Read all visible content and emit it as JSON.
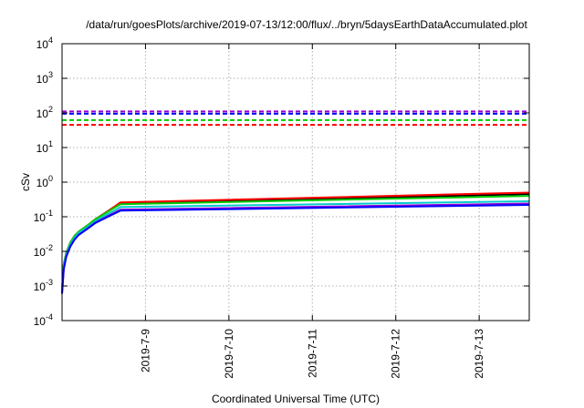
{
  "chart_data": {
    "type": "line",
    "title": "/data/run/goesPlots/archive/2019-07-13/12:00/flux/../bryn/5daysEarthDataAccumulated.plot",
    "xlabel": "Coordinated Universal Time (UTC)",
    "ylabel": "cSv",
    "yscale": "log",
    "ylim": [
      0.0001,
      10000
    ],
    "xlim": [
      0,
      5.6
    ],
    "grid": true,
    "y_ticks": [
      {
        "value": 0.0001,
        "base": "10",
        "exp": "-4"
      },
      {
        "value": 0.001,
        "base": "10",
        "exp": "-3"
      },
      {
        "value": 0.01,
        "base": "10",
        "exp": "-2"
      },
      {
        "value": 0.1,
        "base": "10",
        "exp": "-1"
      },
      {
        "value": 1,
        "base": "10",
        "exp": "0"
      },
      {
        "value": 10,
        "base": "10",
        "exp": "1"
      },
      {
        "value": 100,
        "base": "10",
        "exp": "2"
      },
      {
        "value": 1000,
        "base": "10",
        "exp": "3"
      },
      {
        "value": 10000,
        "base": "10",
        "exp": "4"
      }
    ],
    "x_ticks": [
      {
        "value": 1,
        "label": "2019-7-9"
      },
      {
        "value": 2,
        "label": "2019-7-10"
      },
      {
        "value": 3,
        "label": "2019-7-11"
      },
      {
        "value": 4,
        "label": "2019-7-12"
      },
      {
        "value": 5,
        "label": "2019-7-13"
      }
    ],
    "thresholds": [
      {
        "value": 110,
        "color": "#9400d3"
      },
      {
        "value": 95,
        "color": "#0000ff"
      },
      {
        "value": 62,
        "color": "#00cc00"
      },
      {
        "value": 45,
        "color": "#ff0000"
      }
    ],
    "series": [
      {
        "color": "#000000",
        "x": [
          0,
          0.02,
          0.05,
          0.1,
          0.15,
          0.2,
          0.3,
          0.4,
          0.55,
          0.7,
          5.6
        ],
        "y": [
          0.0008,
          0.004,
          0.009,
          0.018,
          0.028,
          0.037,
          0.055,
          0.085,
          0.145,
          0.25,
          0.45
        ]
      },
      {
        "color": "#ff0000",
        "x": [
          0,
          0.02,
          0.05,
          0.1,
          0.15,
          0.2,
          0.3,
          0.4,
          0.55,
          0.7,
          5.6
        ],
        "y": [
          0.0008,
          0.004,
          0.009,
          0.018,
          0.028,
          0.037,
          0.055,
          0.085,
          0.145,
          0.26,
          0.5
        ]
      },
      {
        "color": "#00cc00",
        "x": [
          0,
          0.02,
          0.05,
          0.1,
          0.15,
          0.2,
          0.3,
          0.4,
          0.55,
          0.7,
          5.6
        ],
        "y": [
          0.0008,
          0.004,
          0.009,
          0.018,
          0.028,
          0.037,
          0.055,
          0.085,
          0.14,
          0.23,
          0.4
        ]
      },
      {
        "color": "#00cccc",
        "x": [
          0,
          0.02,
          0.05,
          0.1,
          0.15,
          0.2,
          0.3,
          0.4,
          0.55,
          0.7,
          5.6
        ],
        "y": [
          0.0007,
          0.0035,
          0.008,
          0.016,
          0.025,
          0.034,
          0.05,
          0.075,
          0.12,
          0.19,
          0.28
        ]
      },
      {
        "color": "#9400d3",
        "x": [
          0,
          0.02,
          0.05,
          0.1,
          0.15,
          0.2,
          0.3,
          0.4,
          0.55,
          0.7,
          5.6
        ],
        "y": [
          0.0006,
          0.003,
          0.007,
          0.014,
          0.022,
          0.03,
          0.045,
          0.068,
          0.105,
          0.16,
          0.24
        ]
      },
      {
        "color": "#0000ff",
        "x": [
          0,
          0.02,
          0.05,
          0.1,
          0.15,
          0.2,
          0.3,
          0.4,
          0.55,
          0.7,
          5.6
        ],
        "y": [
          0.0006,
          0.003,
          0.007,
          0.014,
          0.022,
          0.03,
          0.044,
          0.066,
          0.1,
          0.15,
          0.22
        ]
      }
    ]
  }
}
